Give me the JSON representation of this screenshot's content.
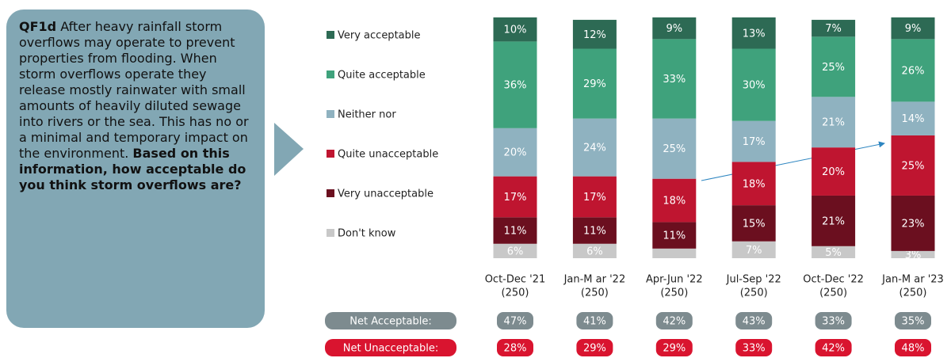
{
  "question": {
    "code": "QF1d",
    "text": "After heavy rainfall storm overflows may operate to prevent properties from flooding. When storm overflows operate they release mostly rainwater with small amounts of heavily diluted sewage into rivers or the sea. This has no or a minimal and temporary impact on the environment.",
    "emphasis": "Based on this information, how acceptable do you think storm overflows are?"
  },
  "chart_data": {
    "type": "stacked_bar",
    "categories": [
      "Oct-Dec '21",
      "Jan-M ar '22",
      "Apr-Jun '22",
      "Jul-Sep '22",
      "Oct-Dec '22",
      "Jan-M ar '23"
    ],
    "bases": [
      "(250)",
      "(250)",
      "(250)",
      "(250)",
      "(250)",
      "(250)"
    ],
    "ylim": [
      0,
      100
    ],
    "series": [
      {
        "name": "Don't know",
        "color": "#c8c8c8",
        "values": [
          6,
          6,
          4,
          7,
          5,
          3
        ],
        "value_labels": [
          "6%",
          "6%",
          null,
          "7%",
          "5%",
          "3%"
        ]
      },
      {
        "name": "Very unacceptable",
        "color": "#6b0f1f",
        "values": [
          11,
          11,
          11,
          15,
          21,
          23
        ],
        "value_labels": [
          "11%",
          "11%",
          "11%",
          "15%",
          "21%",
          "23%"
        ]
      },
      {
        "name": "Quite unacceptable",
        "color": "#bf1530",
        "values": [
          17,
          17,
          18,
          18,
          20,
          25
        ],
        "value_labels": [
          "17%",
          "17%",
          "18%",
          "18%",
          "20%",
          "25%"
        ]
      },
      {
        "name": "Neither nor",
        "color": "#8fb2c0",
        "values": [
          20,
          24,
          25,
          17,
          21,
          14
        ],
        "value_labels": [
          "20%",
          "24%",
          "25%",
          "17%",
          "21%",
          "14%"
        ]
      },
      {
        "name": "Quite acceptable",
        "color": "#3fa27c",
        "values": [
          36,
          29,
          33,
          30,
          25,
          26
        ],
        "value_labels": [
          "36%",
          "29%",
          "33%",
          "30%",
          "25%",
          "26%"
        ]
      },
      {
        "name": "Very acceptable",
        "color": "#2d6a54",
        "values": [
          10,
          12,
          9,
          13,
          7,
          9
        ],
        "value_labels": [
          "10%",
          "12%",
          "9%",
          "13%",
          "7%",
          "9%"
        ]
      }
    ],
    "nets": [
      {
        "name": "Net Acceptable:",
        "color": "#7d8b8f",
        "values": [
          47,
          41,
          42,
          43,
          33,
          35
        ],
        "value_labels": [
          "47%",
          "41%",
          "42%",
          "43%",
          "33%",
          "35%"
        ]
      },
      {
        "name": "Net Unacceptable:",
        "color": "#d9142f",
        "values": [
          28,
          29,
          29,
          33,
          42,
          48
        ],
        "value_labels": [
          "28%",
          "29%",
          "29%",
          "33%",
          "42%",
          "48%"
        ]
      }
    ]
  }
}
